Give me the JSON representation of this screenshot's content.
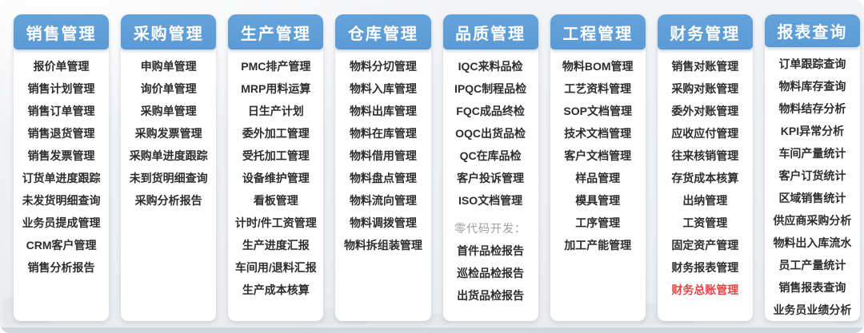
{
  "colors": {
    "header_bg": "#5b9bd5",
    "header_bg_light": "#64a2da",
    "header_text": "#ffffff",
    "item_text": "#2e2e2e",
    "red": "#e14747",
    "muted": "#9f9f9f",
    "card_bg": "#ffffff",
    "page_bg": "#eef0f2"
  },
  "columns": [
    {
      "title": "销售管理",
      "items": [
        {
          "label": "报价单管理"
        },
        {
          "label": "销售计划管理"
        },
        {
          "label": "销售订单管理"
        },
        {
          "label": "销售退货管理"
        },
        {
          "label": "销售发票管理"
        },
        {
          "label": "订货单进度跟踪"
        },
        {
          "label": "未发货明细查询"
        },
        {
          "label": "业务员提成管理"
        },
        {
          "label": "CRM客户管理"
        },
        {
          "label": "销售分析报告"
        }
      ]
    },
    {
      "title": "采购管理",
      "items": [
        {
          "label": "申购单管理"
        },
        {
          "label": "询价单管理"
        },
        {
          "label": "采购单管理"
        },
        {
          "label": "采购发票管理"
        },
        {
          "label": "采购单进度跟踪"
        },
        {
          "label": "未到货明细查询"
        },
        {
          "label": "采购分析报告"
        }
      ]
    },
    {
      "title": "生产管理",
      "items": [
        {
          "label": "PMC排产管理"
        },
        {
          "label": "MRP用料运算"
        },
        {
          "label": "日生产计划"
        },
        {
          "label": "委外加工管理"
        },
        {
          "label": "受托加工管理"
        },
        {
          "label": "设备维护管理"
        },
        {
          "label": "看板管理"
        },
        {
          "label": "计时/件工资管理"
        },
        {
          "label": "生产进度汇报"
        },
        {
          "label": "车间用/退料汇报"
        },
        {
          "label": "生产成本核算"
        }
      ]
    },
    {
      "title": "仓库管理",
      "items": [
        {
          "label": "物料分切管理"
        },
        {
          "label": "物料入库管理"
        },
        {
          "label": "物料出库管理"
        },
        {
          "label": "物料在库管理"
        },
        {
          "label": "物料借用管理"
        },
        {
          "label": "物料盘点管理"
        },
        {
          "label": "物料流向管理"
        },
        {
          "label": "物料调拨管理"
        },
        {
          "label": "物料拆组装管理"
        }
      ]
    },
    {
      "title": "品质管理",
      "items": [
        {
          "label": "IQC来料品检"
        },
        {
          "label": "IPQC制程品检"
        },
        {
          "label": "FQC成品终检"
        },
        {
          "label": "OQC出货品检"
        },
        {
          "label": "QC在库品检"
        },
        {
          "label": "客户投诉管理"
        },
        {
          "label": "ISO文档管理"
        },
        {
          "label": "零代码开发：",
          "style": "muted-label"
        },
        {
          "label": "首件品检报告"
        },
        {
          "label": "巡检品检报告"
        },
        {
          "label": "出货品检报告"
        }
      ]
    },
    {
      "title": "工程管理",
      "items": [
        {
          "label": "物料BOM管理"
        },
        {
          "label": "工艺资料管理"
        },
        {
          "label": "SOP文档管理"
        },
        {
          "label": "技术文档管理"
        },
        {
          "label": "客户文档管理"
        },
        {
          "label": "样品管理"
        },
        {
          "label": "模具管理"
        },
        {
          "label": "工序管理"
        },
        {
          "label": "加工产能管理"
        }
      ]
    },
    {
      "title": "财务管理",
      "items": [
        {
          "label": "销售对账管理"
        },
        {
          "label": "采购对账管理"
        },
        {
          "label": "委外对账管理"
        },
        {
          "label": "应收应付管理"
        },
        {
          "label": "往来核销管理"
        },
        {
          "label": "存货成本核算"
        },
        {
          "label": "出纳管理"
        },
        {
          "label": "工资管理"
        },
        {
          "label": "固定资产管理"
        },
        {
          "label": "财务报表管理"
        },
        {
          "label": "财务总账管理",
          "style": "red"
        }
      ]
    },
    {
      "title": "报表查询",
      "items": [
        {
          "label": "订单跟踪查询"
        },
        {
          "label": "物料库存查询"
        },
        {
          "label": "物料结存分析"
        },
        {
          "label": "KPI异常分析"
        },
        {
          "label": "车间产量统计"
        },
        {
          "label": "客户订货统计"
        },
        {
          "label": "区域销售统计"
        },
        {
          "label": "供应商采购分析"
        },
        {
          "label": "物料出入库流水"
        },
        {
          "label": "员工产量统计"
        },
        {
          "label": "销售报表查询"
        },
        {
          "label": "业务员业绩分析"
        }
      ]
    }
  ]
}
